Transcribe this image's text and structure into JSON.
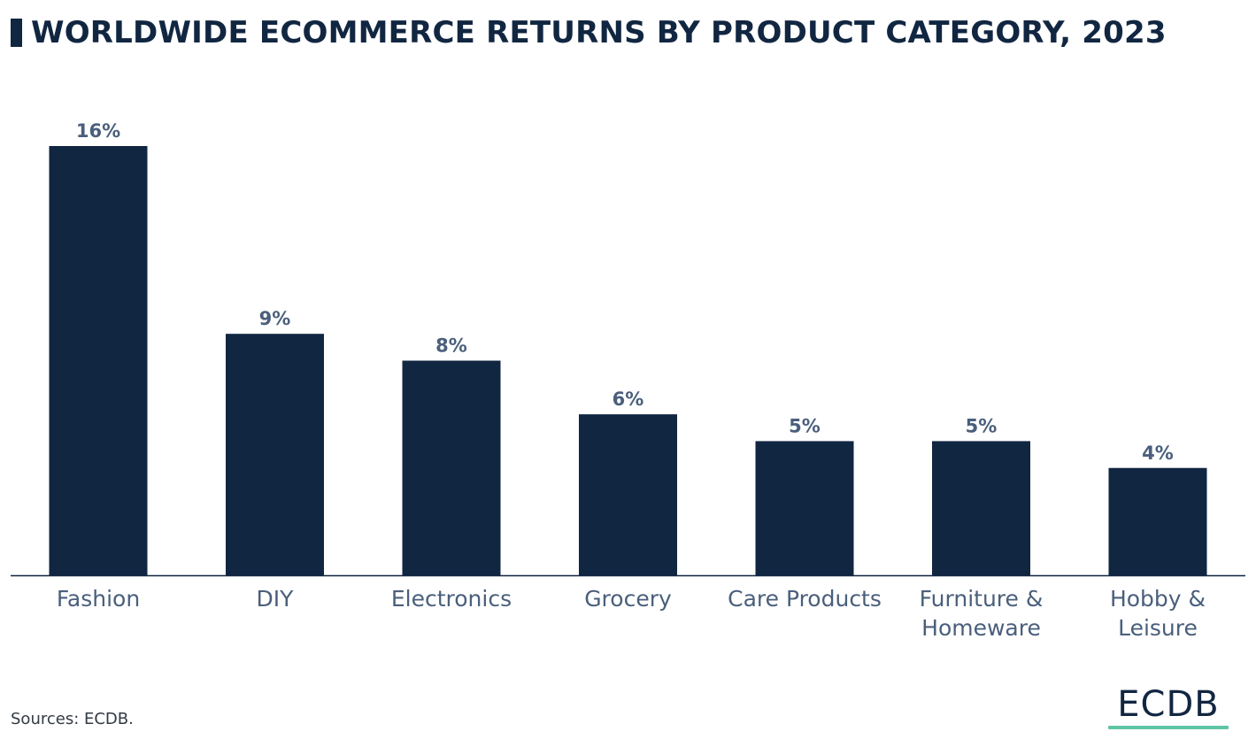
{
  "colors": {
    "bar": "#112641",
    "title": "#112641",
    "value_label": "#4a5f7c",
    "category_label": "#4a5f7c",
    "axis": "#112641",
    "brand_text": "#112641",
    "brand_accent": "#5fc4a6"
  },
  "chart_data": {
    "type": "bar",
    "title": "WORLDWIDE ECOMMERCE RETURNS BY PRODUCT CATEGORY, 2023",
    "categories": [
      "Fashion",
      "DIY",
      "Electronics",
      "Grocery",
      "Care Products",
      "Furniture & Homeware",
      "Hobby & Leisure"
    ],
    "category_lines": [
      [
        "Fashion"
      ],
      [
        "DIY"
      ],
      [
        "Electronics"
      ],
      [
        "Grocery"
      ],
      [
        "Care Products"
      ],
      [
        "Furniture &",
        "Homeware"
      ],
      [
        "Hobby &",
        "Leisure"
      ]
    ],
    "values": [
      16,
      9,
      8,
      6,
      5,
      5,
      4
    ],
    "value_labels": [
      "16%",
      "9%",
      "8%",
      "6%",
      "5%",
      "5%",
      "4%"
    ],
    "ylim": [
      0,
      16
    ],
    "xlabel": "",
    "ylabel": "",
    "grid": false,
    "legend": "none"
  },
  "footer": {
    "source": "Sources: ECDB.",
    "brand": "ECDB"
  }
}
